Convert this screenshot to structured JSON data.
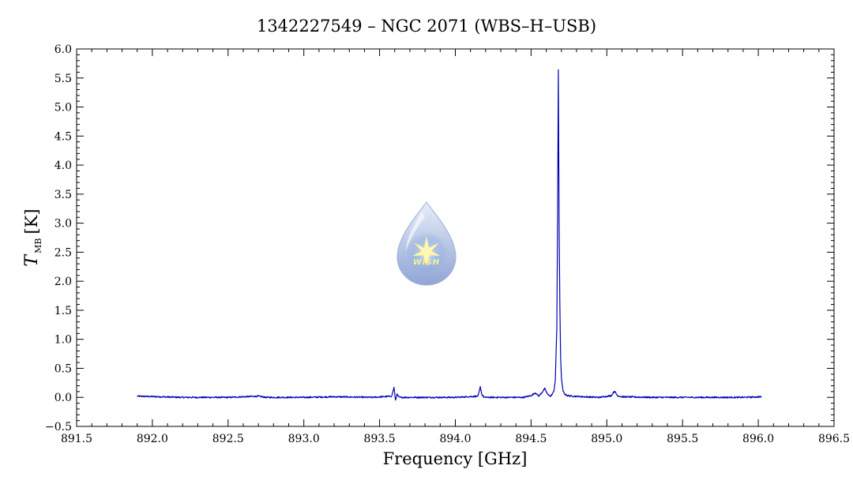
{
  "chart_data": {
    "type": "line",
    "title": "1342227549 – NGC 2071 (WBS–H–USB)",
    "xlabel": "Frequency [GHz]",
    "ylabel": {
      "symbol": "T",
      "subscript": "MB",
      "unit": "[K]"
    },
    "xlim": [
      891.5,
      896.5
    ],
    "ylim": [
      -0.5,
      6.0
    ],
    "x_ticks": [
      "891.5",
      "892.0",
      "892.5",
      "893.0",
      "893.5",
      "894.0",
      "894.5",
      "895.0",
      "895.5",
      "896.0",
      "896.5"
    ],
    "y_ticks": [
      "−0.5",
      "0.0",
      "0.5",
      "1.0",
      "1.5",
      "2.0",
      "2.5",
      "3.0",
      "3.5",
      "4.0",
      "4.5",
      "5.0",
      "5.5",
      "6.0"
    ],
    "grid": false,
    "series_color": "#0000b4",
    "series": [
      {
        "x": [
          891.9,
          892.2,
          892.5,
          892.7,
          892.75,
          893.0,
          893.2,
          893.45,
          893.58,
          893.595,
          893.605,
          893.615,
          893.63,
          893.8,
          894.0,
          894.15,
          894.165,
          894.175,
          894.19,
          894.35,
          894.45,
          894.5,
          894.53,
          894.55,
          894.57,
          894.59,
          894.61,
          894.63,
          894.65,
          894.66,
          894.67,
          894.675,
          894.68,
          894.685,
          894.69,
          894.695,
          894.7,
          894.71,
          894.72,
          894.74,
          894.78,
          894.85,
          894.95,
          895.03,
          895.05,
          895.07,
          895.1,
          895.3,
          895.5,
          895.7,
          895.9,
          896.02
        ],
        "y": [
          0.02,
          0.0,
          0.0,
          0.02,
          0.0,
          0.0,
          0.01,
          0.0,
          0.02,
          0.17,
          -0.05,
          0.05,
          0.0,
          0.0,
          0.0,
          0.02,
          0.18,
          0.05,
          0.0,
          0.0,
          0.0,
          0.03,
          0.08,
          0.02,
          0.08,
          0.15,
          0.05,
          0.02,
          0.1,
          0.3,
          1.2,
          3.1,
          5.63,
          3.0,
          1.6,
          0.7,
          0.35,
          0.12,
          0.06,
          0.03,
          0.02,
          0.01,
          0.0,
          0.03,
          0.11,
          0.03,
          0.01,
          0.0,
          0.0,
          0.0,
          0.0,
          0.01
        ]
      }
    ]
  },
  "logo": {
    "text": "WISH"
  }
}
